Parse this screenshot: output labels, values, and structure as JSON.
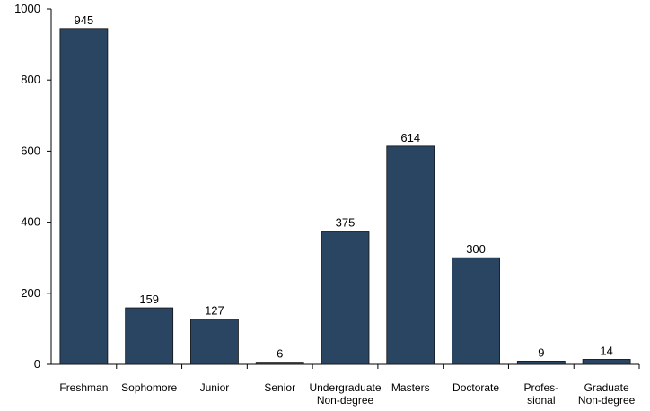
{
  "chart_data": {
    "type": "bar",
    "title": "",
    "xlabel": "",
    "ylabel": "",
    "ylim": [
      0,
      1000
    ],
    "yticks": [
      0,
      200,
      400,
      600,
      800,
      1000
    ],
    "grid": false,
    "legend": "none",
    "categories": [
      [
        "Freshman"
      ],
      [
        "Sophomore"
      ],
      [
        "Junior"
      ],
      [
        "Senior"
      ],
      [
        "Undergraduate",
        "Non-degree"
      ],
      [
        "Masters"
      ],
      [
        "Doctorate"
      ],
      [
        "Profes-",
        "sional"
      ],
      [
        "Graduate",
        "Non-degree"
      ]
    ],
    "values": [
      945,
      159,
      127,
      6,
      375,
      614,
      300,
      9,
      14
    ],
    "bar_color": "#2a4562",
    "bar_stroke": "#111111"
  }
}
